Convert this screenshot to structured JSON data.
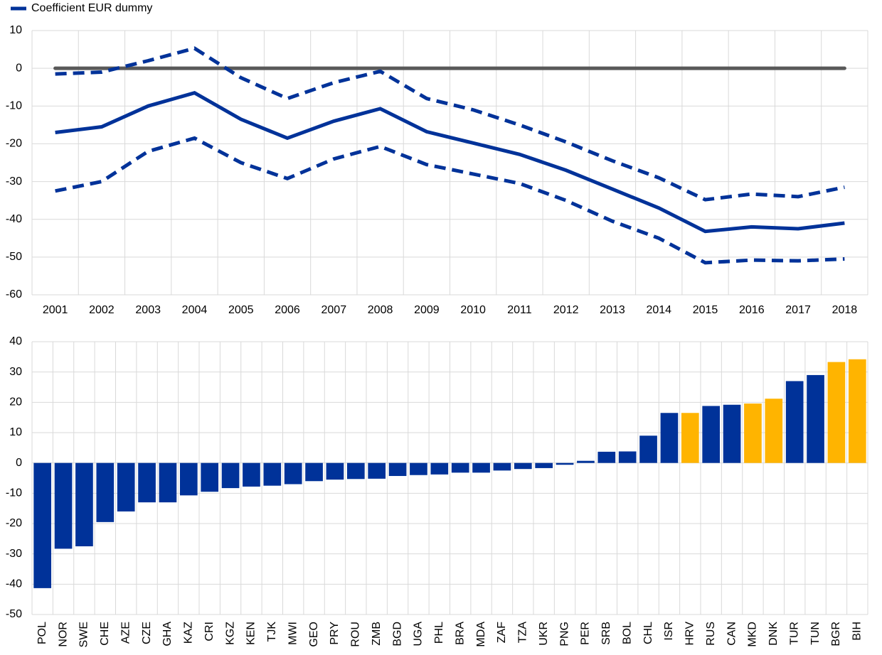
{
  "chart_data": [
    {
      "type": "line",
      "categories": [
        "2001",
        "2002",
        "2003",
        "2004",
        "2005",
        "2006",
        "2007",
        "2008",
        "2009",
        "2010",
        "2011",
        "2012",
        "2013",
        "2014",
        "2015",
        "2016",
        "2017",
        "2018"
      ],
      "series": [
        {
          "name": "Coefficient EUR dummy",
          "color": "#003299",
          "style": "solid",
          "values": [
            -17,
            -15.5,
            -10,
            -6.5,
            -13.5,
            -18.5,
            -14,
            -10.7,
            -16.8,
            -19.8,
            -22.8,
            -27,
            -32,
            -37,
            -43.2,
            -42,
            -42.5,
            -41
          ]
        },
        {
          "color": "#003299",
          "style": "dashed",
          "values": [
            -1.5,
            -1,
            2,
            5.3,
            -2.5,
            -8,
            -3.8,
            -0.8,
            -8,
            -11,
            -15,
            -19.5,
            -24.5,
            -29,
            -34.8,
            -33.3,
            -34,
            -31.5
          ]
        },
        {
          "color": "#003299",
          "style": "dashed",
          "values": [
            -32.5,
            -30,
            -22,
            -18.5,
            -25,
            -29.2,
            -24,
            -20.7,
            -25.5,
            -28,
            -30.5,
            -35,
            -40.5,
            -45,
            -51.5,
            -50.8,
            -51,
            -50.5
          ]
        }
      ],
      "ylim": [
        -60,
        10
      ],
      "yticks": [
        10,
        0,
        -10,
        -20,
        -30,
        -40,
        -50,
        -60
      ],
      "grid": true,
      "legend": "top-left"
    },
    {
      "type": "bar",
      "categories": [
        "POL",
        "NOR",
        "SWE",
        "CHE",
        "AZE",
        "CZE",
        "GHA",
        "KAZ",
        "CRI",
        "KGZ",
        "KEN",
        "TJK",
        "MWI",
        "GEO",
        "PRY",
        "ROU",
        "ZMB",
        "BGD",
        "UGA",
        "PHL",
        "BRA",
        "MDA",
        "ZAF",
        "TZA",
        "UKR",
        "PNG",
        "PER",
        "SRB",
        "BOL",
        "CHL",
        "ISR",
        "HRV",
        "RUS",
        "CAN",
        "MKD",
        "DNK",
        "TUR",
        "TUN",
        "BGR",
        "BIH"
      ],
      "values": [
        -41.3,
        -28.3,
        -27.5,
        -19.5,
        -16,
        -13,
        -13,
        -10.7,
        -9.5,
        -8.3,
        -7.8,
        -7.5,
        -7,
        -6,
        -5.5,
        -5.3,
        -5.2,
        -4.3,
        -4,
        -3.8,
        -3.2,
        -3.2,
        -2.5,
        -2,
        -1.7,
        -0.6,
        0.7,
        3.7,
        3.8,
        9,
        16.5,
        16.5,
        18.8,
        19.2,
        19.6,
        21.2,
        27,
        29,
        33.3,
        34.2
      ],
      "colors": [
        "#003299",
        "#003299",
        "#003299",
        "#003299",
        "#003299",
        "#003299",
        "#003299",
        "#003299",
        "#003299",
        "#003299",
        "#003299",
        "#003299",
        "#003299",
        "#003299",
        "#003299",
        "#003299",
        "#003299",
        "#003299",
        "#003299",
        "#003299",
        "#003299",
        "#003299",
        "#003299",
        "#003299",
        "#003299",
        "#003299",
        "#003299",
        "#003299",
        "#003299",
        "#003299",
        "#003299",
        "#ffb400",
        "#003299",
        "#003299",
        "#ffb400",
        "#ffb400",
        "#003299",
        "#003299",
        "#ffb400",
        "#ffb400"
      ],
      "ylim": [
        -50,
        40
      ],
      "yticks": [
        40,
        30,
        20,
        10,
        0,
        -10,
        -20,
        -30,
        -40,
        -50
      ],
      "grid": true
    }
  ]
}
